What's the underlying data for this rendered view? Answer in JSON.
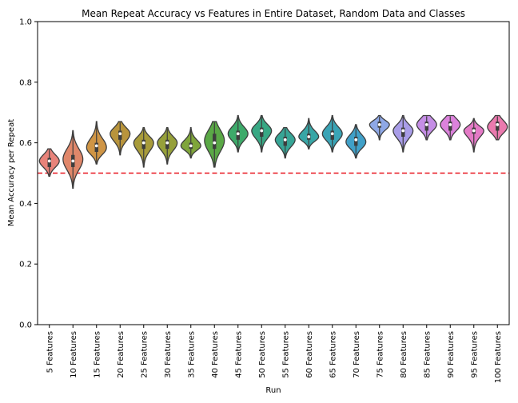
{
  "chart_data": {
    "type": "violin",
    "title": "Mean Repeat Accuracy vs Features in Entire Dataset, Random Data and Classes",
    "xlabel": "Run",
    "ylabel": "Mean Accuracy per Repeat",
    "ylim": [
      0.0,
      1.0
    ],
    "yticks": [
      "0.0",
      "0.2",
      "0.4",
      "0.6",
      "0.8",
      "1.0"
    ],
    "grid": false,
    "reference_line": {
      "y": 0.5,
      "style": "dashed",
      "color": "#e8141e"
    },
    "categories": [
      "5 Features",
      "10 Features",
      "15 Features",
      "20 Features",
      "25 Features",
      "30 Features",
      "35 Features",
      "40 Features",
      "45 Features",
      "50 Features",
      "55 Features",
      "60 Features",
      "65 Features",
      "70 Features",
      "75 Features",
      "80 Features",
      "85 Features",
      "90 Features",
      "95 Features",
      "100 Features"
    ],
    "colors": [
      "#e8837a",
      "#e0876a",
      "#cf9545",
      "#b8943c",
      "#a89b3a",
      "#96a03a",
      "#7fa53a",
      "#5aa846",
      "#3daa6a",
      "#38a884",
      "#37a596",
      "#38a6a6",
      "#3aa4b6",
      "#40a0c8",
      "#8ea8e6",
      "#a99de8",
      "#c58ee6",
      "#dc82dc",
      "#e47ac6",
      "#ea7aae"
    ],
    "series": [
      {
        "min": 0.49,
        "q1": 0.52,
        "median": 0.54,
        "q3": 0.55,
        "max": 0.58,
        "mode": 0.54
      },
      {
        "min": 0.45,
        "q1": 0.52,
        "median": 0.54,
        "q3": 0.56,
        "max": 0.64,
        "mode": 0.55
      },
      {
        "min": 0.53,
        "q1": 0.57,
        "median": 0.59,
        "q3": 0.6,
        "max": 0.67,
        "mode": 0.58
      },
      {
        "min": 0.56,
        "q1": 0.61,
        "median": 0.63,
        "q3": 0.64,
        "max": 0.67,
        "mode": 0.63
      },
      {
        "min": 0.52,
        "q1": 0.58,
        "median": 0.6,
        "q3": 0.61,
        "max": 0.65,
        "mode": 0.6
      },
      {
        "min": 0.53,
        "q1": 0.58,
        "median": 0.6,
        "q3": 0.61,
        "max": 0.65,
        "mode": 0.6
      },
      {
        "min": 0.55,
        "q1": 0.58,
        "median": 0.59,
        "q3": 0.6,
        "max": 0.65,
        "mode": 0.59
      },
      {
        "min": 0.52,
        "q1": 0.58,
        "median": 0.6,
        "q3": 0.63,
        "max": 0.67,
        "mode": 0.61
      },
      {
        "min": 0.57,
        "q1": 0.61,
        "median": 0.63,
        "q3": 0.64,
        "max": 0.69,
        "mode": 0.63
      },
      {
        "min": 0.57,
        "q1": 0.62,
        "median": 0.64,
        "q3": 0.65,
        "max": 0.69,
        "mode": 0.64
      },
      {
        "min": 0.55,
        "q1": 0.59,
        "median": 0.61,
        "q3": 0.62,
        "max": 0.65,
        "mode": 0.61
      },
      {
        "min": 0.58,
        "q1": 0.61,
        "median": 0.62,
        "q3": 0.63,
        "max": 0.68,
        "mode": 0.62
      },
      {
        "min": 0.57,
        "q1": 0.61,
        "median": 0.63,
        "q3": 0.64,
        "max": 0.69,
        "mode": 0.63
      },
      {
        "min": 0.55,
        "q1": 0.59,
        "median": 0.61,
        "q3": 0.62,
        "max": 0.66,
        "mode": 0.6
      },
      {
        "min": 0.61,
        "q1": 0.65,
        "median": 0.66,
        "q3": 0.67,
        "max": 0.69,
        "mode": 0.66
      },
      {
        "min": 0.57,
        "q1": 0.62,
        "median": 0.64,
        "q3": 0.65,
        "max": 0.69,
        "mode": 0.64
      },
      {
        "min": 0.61,
        "q1": 0.64,
        "median": 0.66,
        "q3": 0.67,
        "max": 0.69,
        "mode": 0.66
      },
      {
        "min": 0.61,
        "q1": 0.64,
        "median": 0.66,
        "q3": 0.67,
        "max": 0.69,
        "mode": 0.66
      },
      {
        "min": 0.57,
        "q1": 0.63,
        "median": 0.64,
        "q3": 0.65,
        "max": 0.68,
        "mode": 0.64
      },
      {
        "min": 0.61,
        "q1": 0.64,
        "median": 0.66,
        "q3": 0.67,
        "max": 0.69,
        "mode": 0.65
      }
    ]
  }
}
